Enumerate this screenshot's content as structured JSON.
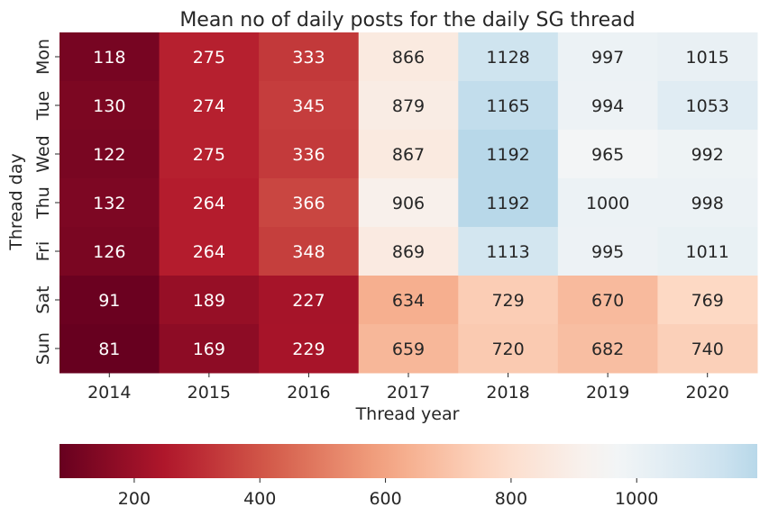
{
  "chart_data": {
    "type": "heatmap",
    "title": "Mean no of daily posts for the daily SG thread",
    "xlabel": "Thread year",
    "ylabel": "Thread day",
    "x_categories": [
      "2014",
      "2015",
      "2016",
      "2017",
      "2018",
      "2019",
      "2020"
    ],
    "y_categories": [
      "Mon",
      "Tue",
      "Wed",
      "Thu",
      "Fri",
      "Sat",
      "Sun"
    ],
    "values": [
      [
        118,
        275,
        333,
        866,
        1128,
        997,
        1015
      ],
      [
        130,
        274,
        345,
        879,
        1165,
        994,
        1053
      ],
      [
        122,
        275,
        336,
        867,
        1192,
        965,
        992
      ],
      [
        132,
        264,
        366,
        906,
        1192,
        1000,
        998
      ],
      [
        126,
        264,
        348,
        869,
        1113,
        995,
        1011
      ],
      [
        91,
        189,
        227,
        634,
        729,
        670,
        769
      ],
      [
        81,
        169,
        229,
        659,
        720,
        682,
        740
      ]
    ],
    "colormap": "RdBu",
    "color_range": [
      81,
      1192
    ],
    "colorbar": {
      "orientation": "horizontal",
      "placement": "bottom",
      "ticks": [
        200,
        400,
        600,
        800,
        1000
      ]
    }
  }
}
